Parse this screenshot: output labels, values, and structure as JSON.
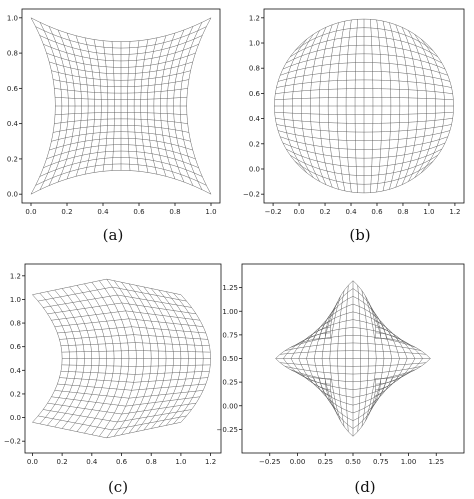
{
  "chart_data": [
    {
      "type": "scatter",
      "caption": "(a)",
      "xlim": [
        -0.05,
        1.05
      ],
      "ylim": [
        -0.05,
        1.05
      ],
      "x_ticks": [
        "0.0",
        "0.2",
        "0.4",
        "0.6",
        "0.8",
        "1.0"
      ],
      "y_ticks": [
        "0.0",
        "0.2",
        "0.4",
        "0.6",
        "0.8",
        "1.0"
      ],
      "grid": false,
      "shape": "concave square mesh, corners (0,0),(1,0),(1,1),(0,1), edges bowed inward by 0.27"
    },
    {
      "type": "scatter",
      "caption": "(b)",
      "xlim": [
        -0.27,
        1.27
      ],
      "ylim": [
        -0.27,
        1.27
      ],
      "x_ticks": [
        "−0.2",
        "0.0",
        "0.2",
        "0.4",
        "0.6",
        "0.8",
        "1.0",
        "1.2"
      ],
      "y_ticks": [
        "−0.2",
        "0.0",
        "0.2",
        "0.4",
        "0.6",
        "0.8",
        "1.0",
        "1.2"
      ],
      "grid": false,
      "shape": "convex (circular) mesh centred at (0.5,0.5), radius about 0.7"
    },
    {
      "type": "scatter",
      "caption": "(c)",
      "xlim": [
        -0.05,
        1.27
      ],
      "ylim": [
        -0.3,
        1.3
      ],
      "x_ticks": [
        "0.0",
        "0.2",
        "0.4",
        "0.6",
        "0.8",
        "1.0",
        "1.2"
      ],
      "y_ticks": [
        "−0.2",
        "0.0",
        "0.2",
        "0.4",
        "0.6",
        "0.8",
        "1.0",
        "1.2"
      ],
      "grid": false,
      "shape": "mesh with left edge bowed right and right edge bowed outward, top and bottom edges kinked at x=0.5"
    },
    {
      "type": "scatter",
      "caption": "(d)",
      "xlim": [
        -0.5,
        1.5
      ],
      "ylim": [
        -0.5,
        1.5
      ],
      "x_ticks": [
        "−0.25",
        "0.00",
        "0.25",
        "0.50",
        "0.75",
        "1.00",
        "1.25"
      ],
      "y_ticks": [
        "−0.25",
        "0.00",
        "0.25",
        "0.50",
        "0.75",
        "1.00",
        "1.25"
      ],
      "grid": false,
      "shape": "star-like mesh centred at (0.5,0.5), bulging to about 0.9 along axes"
    }
  ]
}
